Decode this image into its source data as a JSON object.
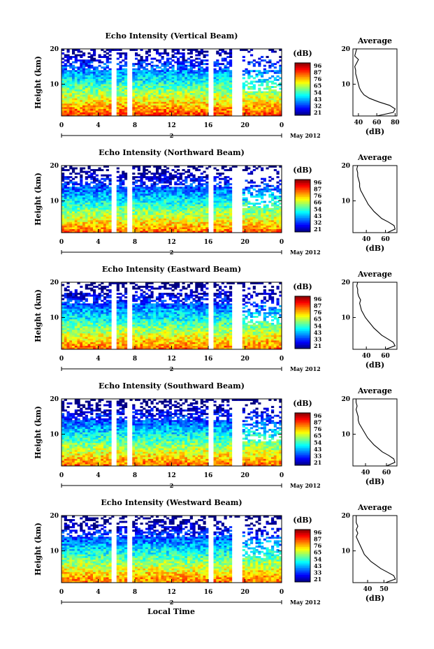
{
  "page": {
    "panels": [
      {
        "title": "Echo Intensity (Vertical Beam)",
        "cbar_ticks": [
          "96",
          "87",
          "76",
          "65",
          "54",
          "43",
          "32",
          "21"
        ],
        "avg_xticks": [
          40,
          60,
          80
        ],
        "avg_xlim": [
          34,
          82
        ],
        "avg_profile": [
          [
            60,
            1
          ],
          [
            78,
            2
          ],
          [
            80,
            3
          ],
          [
            74,
            4
          ],
          [
            62,
            5
          ],
          [
            52,
            6
          ],
          [
            46,
            7
          ],
          [
            43,
            8
          ],
          [
            41,
            9
          ],
          [
            40,
            10
          ],
          [
            39,
            11
          ],
          [
            38,
            12
          ],
          [
            37,
            13
          ],
          [
            37,
            14
          ],
          [
            36,
            15
          ],
          [
            38,
            16
          ],
          [
            40,
            17
          ],
          [
            36,
            18
          ],
          [
            37,
            19
          ],
          [
            38,
            20
          ]
        ],
        "gaps": [
          5.8,
          7.5,
          16.2,
          18.8,
          19.5
        ]
      },
      {
        "title": "Echo Intensity (Northward Beam)",
        "cbar_ticks": [
          "96",
          "87",
          "76",
          "66",
          "54",
          "43",
          "32",
          "21"
        ],
        "avg_xticks": [
          40,
          60
        ],
        "avg_xlim": [
          26,
          72
        ],
        "avg_profile": [
          [
            62,
            1
          ],
          [
            70,
            2
          ],
          [
            69,
            3
          ],
          [
            63,
            4
          ],
          [
            56,
            5
          ],
          [
            52,
            6
          ],
          [
            48,
            7
          ],
          [
            45,
            8
          ],
          [
            42,
            9
          ],
          [
            40,
            10
          ],
          [
            38,
            11
          ],
          [
            36,
            12
          ],
          [
            34,
            13
          ],
          [
            33,
            14
          ],
          [
            33,
            15
          ],
          [
            32,
            16
          ],
          [
            31,
            17
          ],
          [
            31,
            18
          ],
          [
            30,
            19
          ],
          [
            31,
            20
          ]
        ],
        "gaps": [
          5.8,
          7.5,
          16.2,
          18.8,
          19.5
        ]
      },
      {
        "title": "Echo Intensity (Eastward Beam)",
        "cbar_ticks": [
          "96",
          "87",
          "76",
          "65",
          "54",
          "43",
          "33",
          "21"
        ],
        "avg_xticks": [
          40,
          60
        ],
        "avg_xlim": [
          26,
          72
        ],
        "avg_profile": [
          [
            60,
            1
          ],
          [
            70,
            2
          ],
          [
            68,
            3
          ],
          [
            62,
            4
          ],
          [
            56,
            5
          ],
          [
            52,
            6
          ],
          [
            48,
            7
          ],
          [
            45,
            8
          ],
          [
            42,
            9
          ],
          [
            39,
            10
          ],
          [
            37,
            11
          ],
          [
            35,
            12
          ],
          [
            34,
            13
          ],
          [
            33,
            14
          ],
          [
            34,
            15
          ],
          [
            32,
            16
          ],
          [
            31,
            17
          ],
          [
            31,
            18
          ],
          [
            30,
            19
          ],
          [
            31,
            20
          ]
        ],
        "gaps": [
          5.8,
          7.5,
          16.2,
          18.8,
          19.5
        ]
      },
      {
        "title": "Echo Intensity (Southward Beam)",
        "cbar_ticks": [
          "96",
          "87",
          "76",
          "65",
          "54",
          "43",
          "33",
          "21"
        ],
        "avg_xticks": [
          40,
          60
        ],
        "avg_xlim": [
          28,
          70
        ],
        "avg_profile": [
          [
            60,
            1
          ],
          [
            68,
            2
          ],
          [
            67,
            3
          ],
          [
            62,
            4
          ],
          [
            56,
            5
          ],
          [
            52,
            6
          ],
          [
            48,
            7
          ],
          [
            45,
            8
          ],
          [
            42,
            9
          ],
          [
            40,
            10
          ],
          [
            38,
            11
          ],
          [
            36,
            12
          ],
          [
            34,
            13
          ],
          [
            33,
            14
          ],
          [
            33,
            15
          ],
          [
            32,
            16
          ],
          [
            31,
            17
          ],
          [
            32,
            18
          ],
          [
            31,
            19
          ],
          [
            31,
            20
          ]
        ],
        "gaps": [
          5.8,
          7.5,
          16.2,
          18.8,
          19.5
        ]
      },
      {
        "title": "Echo Intensity (Westward Beam)",
        "cbar_ticks": [
          "96",
          "87",
          "76",
          "65",
          "54",
          "43",
          "33",
          "21"
        ],
        "avg_xticks": [
          40,
          50
        ],
        "avg_xlim": [
          31,
          58
        ],
        "avg_profile": [
          [
            51,
            1
          ],
          [
            57,
            2
          ],
          [
            56,
            3
          ],
          [
            52,
            4
          ],
          [
            48,
            5
          ],
          [
            45,
            6
          ],
          [
            42,
            7
          ],
          [
            40,
            8
          ],
          [
            38,
            9
          ],
          [
            37,
            10
          ],
          [
            36,
            11
          ],
          [
            35,
            12
          ],
          [
            34,
            13
          ],
          [
            33,
            14
          ],
          [
            34,
            15
          ],
          [
            33,
            16
          ],
          [
            34,
            17
          ],
          [
            33,
            18
          ],
          [
            33,
            19
          ],
          [
            33,
            20
          ]
        ],
        "gaps": [
          5.8,
          7.5,
          16.2,
          18.8,
          19.5
        ]
      }
    ],
    "common": {
      "ylabel": "Height (km)",
      "cbar_unit": "(dB)",
      "avg_title": "Average",
      "avg_xlabel": "(dB)",
      "xticks": [
        "0",
        "4",
        "8",
        "12",
        "16",
        "20",
        "0"
      ],
      "yticks": [
        "10",
        "20"
      ],
      "date_label": "May 2012",
      "day_marker": "2",
      "xlabel_bottom": "Local Time"
    }
  },
  "chart_data": [
    {
      "type": "heatmap",
      "title": "Echo Intensity (Vertical Beam)",
      "x": "Local Time (h)",
      "xlim": [
        0,
        24
      ],
      "ylabel": "Height (km)",
      "ylim": [
        1,
        20
      ],
      "colorbar_unit": "(dB)",
      "colorbar_range": [
        21,
        96
      ]
    },
    {
      "type": "heatmap",
      "title": "Echo Intensity (Northward Beam)",
      "xlim": [
        0,
        24
      ],
      "ylabel": "Height (km)",
      "ylim": [
        1,
        20
      ],
      "colorbar_unit": "(dB)",
      "colorbar_range": [
        21,
        96
      ]
    },
    {
      "type": "heatmap",
      "title": "Echo Intensity (Eastward Beam)",
      "xlim": [
        0,
        24
      ],
      "ylabel": "Height (km)",
      "ylim": [
        1,
        20
      ],
      "colorbar_unit": "(dB)",
      "colorbar_range": [
        21,
        96
      ]
    },
    {
      "type": "heatmap",
      "title": "Echo Intensity (Southward Beam)",
      "xlim": [
        0,
        24
      ],
      "ylabel": "Height (km)",
      "ylim": [
        1,
        20
      ],
      "colorbar_unit": "(dB)",
      "colorbar_range": [
        21,
        96
      ]
    },
    {
      "type": "heatmap",
      "title": "Echo Intensity (Westward Beam)",
      "xlim": [
        0,
        24
      ],
      "xlabel": "Local Time",
      "ylabel": "Height (km)",
      "ylim": [
        1,
        20
      ],
      "colorbar_unit": "(dB)",
      "colorbar_range": [
        21,
        96
      ]
    }
  ]
}
